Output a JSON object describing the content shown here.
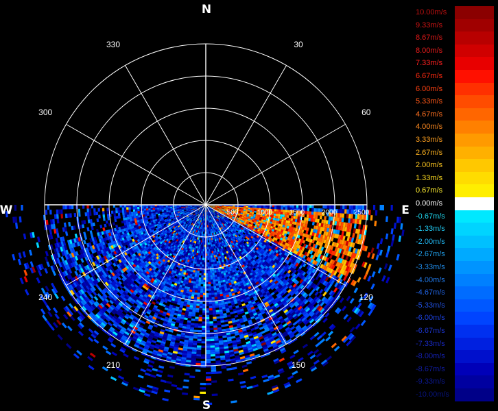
{
  "compass": {
    "north": "N",
    "south": "S",
    "east": "E",
    "west": "W"
  },
  "azimuth_labels": [
    {
      "deg": 30,
      "label": "30"
    },
    {
      "deg": 60,
      "label": "60"
    },
    {
      "deg": 120,
      "label": "120"
    },
    {
      "deg": 150,
      "label": "150"
    },
    {
      "deg": 210,
      "label": "210"
    },
    {
      "deg": 240,
      "label": "240"
    },
    {
      "deg": 300,
      "label": "300"
    },
    {
      "deg": 330,
      "label": "330"
    }
  ],
  "range_labels": [
    "500",
    "1000",
    "1500",
    "2000",
    "2500"
  ],
  "legend": [
    {
      "label": "10.00m/s",
      "color": "#8b0000",
      "text_color": "#c01010"
    },
    {
      "label": "9.33m/s",
      "color": "#a00000",
      "text_color": "#d01414"
    },
    {
      "label": "8.67m/s",
      "color": "#b80000",
      "text_color": "#e01818"
    },
    {
      "label": "8.00m/s",
      "color": "#d00000",
      "text_color": "#ee1c1c"
    },
    {
      "label": "7.33m/s",
      "color": "#e80000",
      "text_color": "#ff2020"
    },
    {
      "label": "6.67m/s",
      "color": "#ff1000",
      "text_color": "#ff2a10"
    },
    {
      "label": "6.00m/s",
      "color": "#ff3000",
      "text_color": "#ff4010"
    },
    {
      "label": "5.33m/s",
      "color": "#ff4c00",
      "text_color": "#ff5818"
    },
    {
      "label": "4.67m/s",
      "color": "#ff6600",
      "text_color": "#ff7020"
    },
    {
      "label": "4.00m/s",
      "color": "#ff8000",
      "text_color": "#ff8a20"
    },
    {
      "label": "3.33m/s",
      "color": "#ff9a00",
      "text_color": "#ffa020"
    },
    {
      "label": "2.67m/s",
      "color": "#ffb000",
      "text_color": "#ffb420"
    },
    {
      "label": "2.00m/s",
      "color": "#ffc800",
      "text_color": "#ffc820"
    },
    {
      "label": "1.33m/s",
      "color": "#ffdc00",
      "text_color": "#ffdc20"
    },
    {
      "label": "0.67m/s",
      "color": "#ffee00",
      "text_color": "#ffee30"
    },
    {
      "label": "0.00m/s",
      "color": "#ffffff",
      "text_color": "#ffffff"
    },
    {
      "label": "-0.67m/s",
      "color": "#00e8ff",
      "text_color": "#20d8f0"
    },
    {
      "label": "-1.33m/s",
      "color": "#00d4ff",
      "text_color": "#20c8f0"
    },
    {
      "label": "-2.00m/s",
      "color": "#00c0ff",
      "text_color": "#20b4ee"
    },
    {
      "label": "-2.67m/s",
      "color": "#00aaff",
      "text_color": "#20a0ec"
    },
    {
      "label": "-3.33m/s",
      "color": "#0094ff",
      "text_color": "#208cea"
    },
    {
      "label": "-4.00m/s",
      "color": "#0080ff",
      "text_color": "#2078e8"
    },
    {
      "label": "-4.67m/s",
      "color": "#006cff",
      "text_color": "#2064e4"
    },
    {
      "label": "-5.33m/s",
      "color": "#0058ff",
      "text_color": "#2050e0"
    },
    {
      "label": "-6.00m/s",
      "color": "#0044ff",
      "text_color": "#1c40dc"
    },
    {
      "label": "-6.67m/s",
      "color": "#0030f0",
      "text_color": "#1c34cc"
    },
    {
      "label": "-7.33m/s",
      "color": "#0020e0",
      "text_color": "#1828c0"
    },
    {
      "label": "-8.00m/s",
      "color": "#0010cc",
      "text_color": "#1420b0"
    },
    {
      "label": "-8.67m/s",
      "color": "#0000b8",
      "text_color": "#101ca0"
    },
    {
      "label": "-9.33m/s",
      "color": "#0000a0",
      "text_color": "#0c1890"
    },
    {
      "label": "-10.00m/s",
      "color": "#000088",
      "text_color": "#081480"
    }
  ]
}
